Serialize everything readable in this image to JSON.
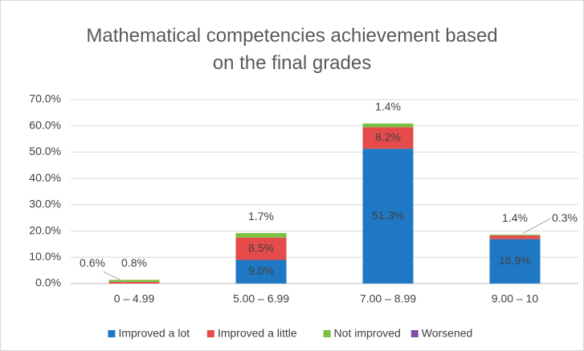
{
  "chart_data": {
    "type": "stacked_bar",
    "title": "Mathematical competencies achievement based on the final grades",
    "categories": [
      "0 – 4.99",
      "5.00 – 6.99",
      "7.00 – 8.99",
      "9.00 – 10"
    ],
    "series": [
      {
        "name": "Improved a lot",
        "color": "#1f78c4",
        "values": [
          0,
          9.0,
          51.3,
          16.9
        ],
        "value_labels": [
          null,
          "9.0%",
          "51.3%",
          "16.9%"
        ]
      },
      {
        "name": "Improved a little",
        "color": "#e54b4b",
        "values": [
          0.6,
          8.5,
          8.2,
          1.4
        ],
        "value_labels": [
          "0.6%",
          "8.5%",
          "8.2%",
          "1.4%"
        ]
      },
      {
        "name": "Not improved",
        "color": "#7ac143",
        "values": [
          0.8,
          1.7,
          1.4,
          0.3
        ],
        "value_labels": [
          "0.8%",
          "1.7%",
          "1.4%",
          "0.3%"
        ]
      },
      {
        "name": "Worsened",
        "color": "#7b4fa6",
        "values": [
          0,
          0,
          0,
          0
        ]
      }
    ],
    "ylim": [
      0,
      70
    ],
    "yticks": [
      {
        "value": 0,
        "label": "0.0%"
      },
      {
        "value": 10,
        "label": "10.0%"
      },
      {
        "value": 20,
        "label": "20.0%"
      },
      {
        "value": 30,
        "label": "30.0%"
      },
      {
        "value": 40,
        "label": "40.0%"
      },
      {
        "value": 50,
        "label": "50.0%"
      },
      {
        "value": 60,
        "label": "60.0%"
      },
      {
        "value": 70,
        "label": "70.0%"
      }
    ],
    "grid": true,
    "legend": "bottom"
  }
}
